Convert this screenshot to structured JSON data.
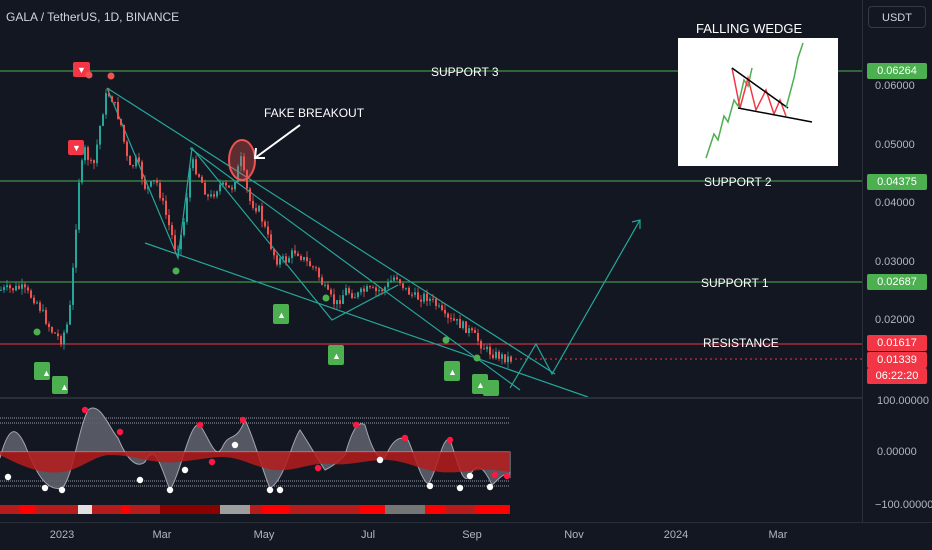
{
  "header": {
    "symbol": "GALA / TetherUS, 1D, BINANCE",
    "currency": "USDT"
  },
  "annotations": {
    "support3": "SUPPORT 3",
    "support2": "SUPPORT 2",
    "support1": "SUPPORT 1",
    "resistance": "RESISTANCE",
    "fake_breakout": "FAKE BREAKOUT",
    "falling_wedge": "FALLING WEDGE"
  },
  "price_axis": {
    "ticks": [
      "0.06000",
      "0.05000",
      "0.04000",
      "0.03000",
      "0.02000"
    ],
    "labels": [
      {
        "value": "0.06264",
        "color": "#4caf50"
      },
      {
        "value": "0.04375",
        "color": "#4caf50"
      },
      {
        "value": "0.02687",
        "color": "#4caf50"
      },
      {
        "value": "0.01617",
        "color": "#f23645"
      },
      {
        "value": "0.01339",
        "color": "#f23645"
      },
      {
        "value": "06:22:20",
        "color": "#f23645"
      }
    ]
  },
  "oscillator_axis": {
    "ticks": [
      "100.00000",
      "0.00000",
      "−100.00000"
    ]
  },
  "time_axis": {
    "ticks": [
      "2023",
      "Mar",
      "May",
      "Jul",
      "Sep",
      "Nov",
      "2024",
      "Mar"
    ]
  },
  "colors": {
    "support": "#4caf50",
    "resistance": "#f23645",
    "wedge": "#26a69a",
    "up": "#26a69a",
    "down": "#ef5350"
  }
}
